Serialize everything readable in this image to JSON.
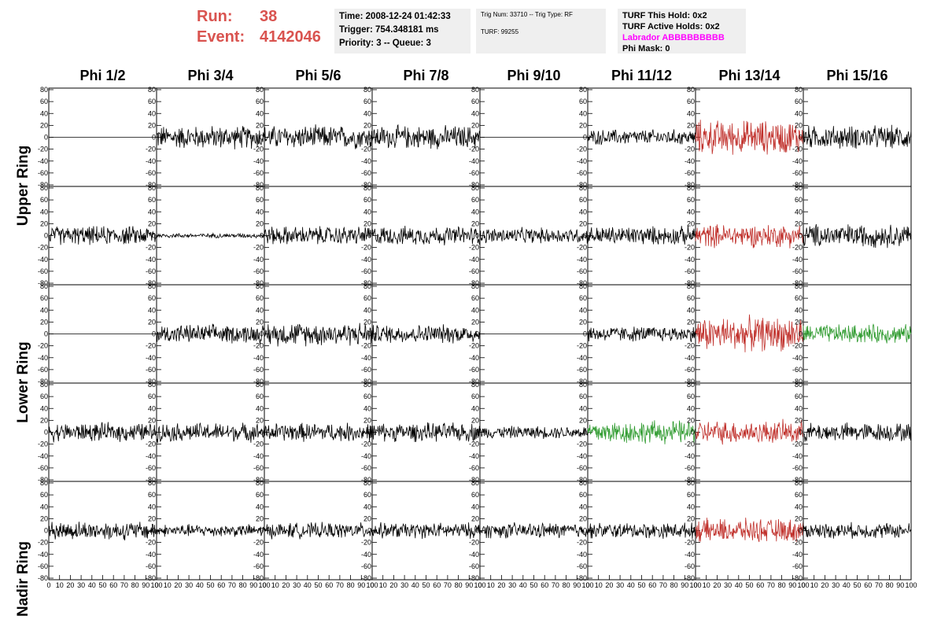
{
  "run": {
    "run_label": "Run:",
    "run_value": "38",
    "event_label": "Event:",
    "event_value": "4142046"
  },
  "time_box": {
    "time": "Time: 2008-12-24 01:42:33",
    "trigger": "Trigger: 754.348181 ms",
    "priority": "Priority: 3 -- Queue: 3"
  },
  "trig_box": {
    "trig": "Trig Num: 33710 -- Trig Type: RF",
    "turf": "TURF: 99255"
  },
  "turf_box": {
    "hold": "TURF This Hold: 0x2",
    "active": "TURF Active Holds: 0x2",
    "labrador": "Labrador ABBBBBBBBB",
    "mask": "Phi Mask: 0"
  },
  "colors": {
    "red": "#c0302b",
    "green": "#2d9a2d",
    "black": "#000000",
    "run_text": "#d9534f",
    "labrador": "#ff00ff"
  },
  "chart_data": {
    "type": "line",
    "columns": [
      "Phi 1/2",
      "Phi 3/4",
      "Phi 5/6",
      "Phi 7/8",
      "Phi 9/10",
      "Phi 11/12",
      "Phi 13/14",
      "Phi 15/16"
    ],
    "rows": [
      {
        "label": "Upper Ring"
      },
      {
        "label": ""
      },
      {
        "label": "Lower Ring"
      },
      {
        "label": ""
      },
      {
        "label": "Nadir Ring"
      }
    ],
    "ylim": [
      -80,
      80
    ],
    "yticks": [
      -80,
      -60,
      -40,
      -20,
      0,
      20,
      40,
      60,
      80
    ],
    "xlim": [
      0,
      100
    ],
    "xticks": [
      0,
      10,
      20,
      30,
      40,
      50,
      60,
      70,
      80,
      90,
      100
    ],
    "amplitude": [
      [
        0,
        15,
        15,
        15,
        0,
        10,
        22,
        15
      ],
      [
        12,
        3,
        12,
        12,
        10,
        12,
        15,
        15
      ],
      [
        0,
        12,
        15,
        12,
        0,
        10,
        22,
        12
      ],
      [
        12,
        12,
        12,
        12,
        8,
        15,
        15,
        12
      ],
      [
        12,
        8,
        10,
        10,
        10,
        10,
        15,
        10
      ]
    ],
    "color_codes": [
      [
        "k",
        "k",
        "k",
        "k",
        "k",
        "k",
        "r",
        "k"
      ],
      [
        "k",
        "k",
        "k",
        "k",
        "k",
        "k",
        "r",
        "k"
      ],
      [
        "k",
        "k",
        "k",
        "k",
        "k",
        "k",
        "r",
        "g"
      ],
      [
        "k",
        "k",
        "k",
        "k",
        "k",
        "g",
        "r",
        "k"
      ],
      [
        "k",
        "k",
        "k",
        "k",
        "k",
        "k",
        "r",
        "k"
      ]
    ]
  }
}
